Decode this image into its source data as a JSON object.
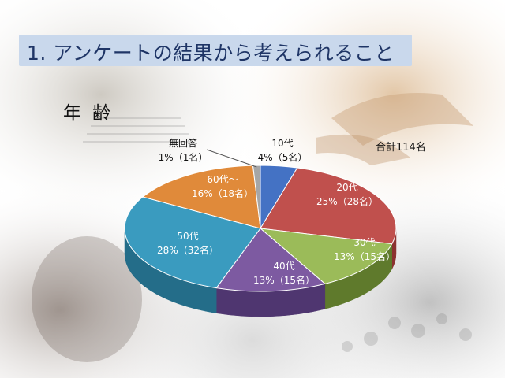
{
  "title": "1. アンケートの結果から考えられること",
  "subtitle": "年齢",
  "total_label": "合計114名",
  "chart_data": {
    "type": "pie",
    "title": "年齢",
    "total": "合計114名",
    "slices": [
      {
        "label": "10代",
        "value": 5,
        "percent_text": "4%（5名）",
        "color": "#4472c4",
        "side": "#2f528f"
      },
      {
        "label": "20代",
        "value": 28,
        "percent_text": "25%（28名）",
        "color": "#c0504d",
        "side": "#8c3230"
      },
      {
        "label": "30代",
        "value": 15,
        "percent_text": "13%（15名）",
        "color": "#9bbb59",
        "side": "#5f7a2c"
      },
      {
        "label": "40代",
        "value": 15,
        "percent_text": "13%（15名）",
        "color": "#7d5aa1",
        "side": "#4f3670"
      },
      {
        "label": "50代",
        "value": 32,
        "percent_text": "28%（32名）",
        "color": "#3a9bbf",
        "side": "#246d89"
      },
      {
        "label": "60代～",
        "value": 18,
        "percent_text": "16%（18名）",
        "color": "#e08a3a",
        "side": "#a45e1e"
      },
      {
        "label": "無回答",
        "value": 1,
        "percent_text": "1%（1名）",
        "color": "#a6a6a6",
        "side": "#6f6f6f"
      }
    ]
  }
}
